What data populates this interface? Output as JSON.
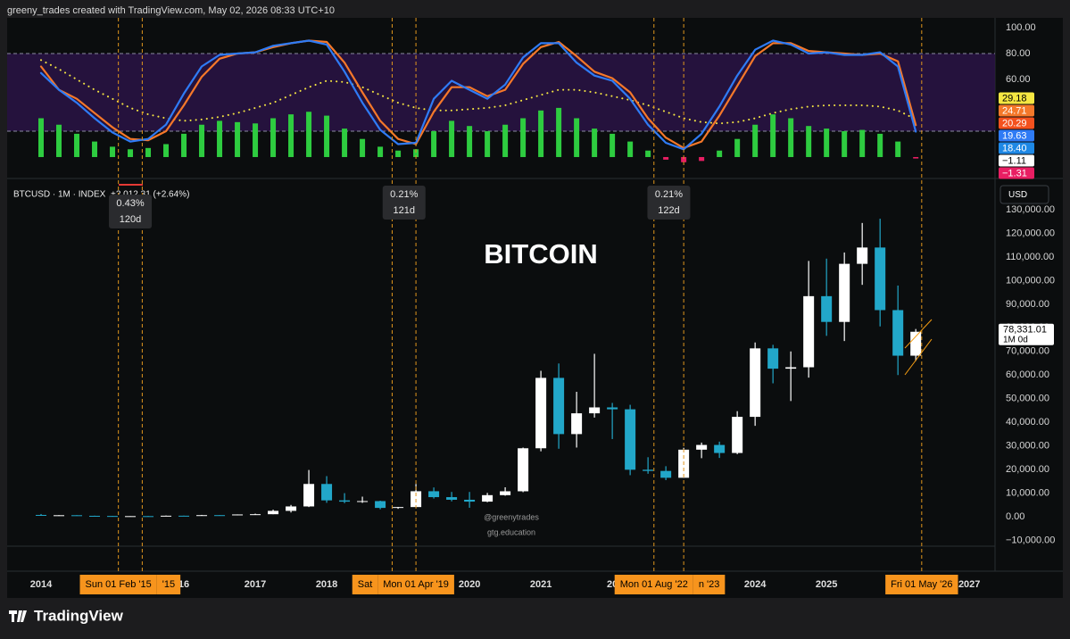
{
  "header": "greeny_trades created with TradingView.com, May 02, 2026 08:33 UTC+10",
  "brand": "TradingView",
  "chart_data": [
    {
      "type": "line",
      "xlim": [
        2013.525,
        2027.36
      ],
      "ylim": [
        -14.5,
        107.6
      ],
      "yticks": [
        {
          "value": 100,
          "label": "100.00"
        },
        {
          "value": 80,
          "label": "80.00"
        },
        {
          "value": 60,
          "label": "60.00"
        }
      ],
      "band": [
        20,
        80
      ],
      "grid": false,
      "x": [
        2014,
        2014.25,
        2014.5,
        2014.75,
        2015,
        2015.25,
        2015.5,
        2015.75,
        2016,
        2016.25,
        2016.5,
        2016.75,
        2017,
        2017.25,
        2017.5,
        2017.75,
        2018,
        2018.25,
        2018.5,
        2018.75,
        2019,
        2019.25,
        2019.5,
        2019.75,
        2020,
        2020.25,
        2020.5,
        2020.75,
        2021,
        2021.25,
        2021.5,
        2021.75,
        2022,
        2022.25,
        2022.5,
        2022.75,
        2023,
        2023.25,
        2023.5,
        2023.75,
        2024,
        2024.25,
        2024.5,
        2024.75,
        2025,
        2025.25,
        2025.5,
        2025.75,
        2026,
        2026.25
      ],
      "series": [
        {
          "type": "bar",
          "color": "#2ecc40",
          "negative_color": "#e91e63",
          "values": [
            30,
            25,
            18,
            12,
            8,
            6,
            7,
            10,
            18,
            25,
            28,
            27,
            26,
            30,
            33,
            35,
            32,
            22,
            14,
            8,
            5,
            6,
            20,
            28,
            24,
            20,
            25,
            30,
            36,
            38,
            30,
            22,
            18,
            12,
            5,
            -2,
            -4,
            -3,
            5,
            14,
            25,
            33,
            30,
            24,
            22,
            20,
            21,
            18,
            12,
            -1.11
          ]
        },
        {
          "type": "dotted",
          "color": "#f5e642",
          "values": [
            75,
            68,
            60,
            52,
            45,
            38,
            33,
            30,
            28,
            29,
            31,
            34,
            38,
            42,
            48,
            54,
            59,
            58,
            54,
            48,
            42,
            38,
            36,
            36,
            37,
            38,
            40,
            44,
            48,
            52,
            52,
            50,
            47,
            44,
            40,
            35,
            30,
            27,
            26,
            27,
            30,
            34,
            37,
            39,
            40,
            40,
            40,
            39,
            36,
            29.18
          ]
        },
        {
          "type": "line",
          "color": "#f5782a",
          "values": [
            70,
            52,
            45,
            34,
            23,
            14,
            13,
            20,
            40,
            62,
            76,
            80,
            81,
            85,
            88,
            90,
            89,
            73,
            50,
            28,
            14,
            10,
            35,
            54,
            54,
            47,
            52,
            72,
            85,
            89,
            78,
            66,
            61,
            50,
            30,
            15,
            7,
            12,
            32,
            55,
            78,
            88,
            88,
            82,
            81,
            80,
            79,
            80,
            74,
            24.71
          ]
        },
        {
          "type": "line",
          "color": "#2f7bf5",
          "values": [
            65,
            52,
            42,
            30,
            19,
            12,
            14,
            25,
            49,
            70,
            79,
            80,
            81,
            86,
            88,
            90,
            87,
            66,
            42,
            21,
            10,
            11,
            45,
            59,
            52,
            45,
            56,
            77,
            88,
            88,
            73,
            63,
            59,
            45,
            25,
            11,
            6,
            18,
            39,
            63,
            83,
            90,
            87,
            80,
            81,
            79,
            79,
            81,
            70,
            19.63
          ]
        }
      ],
      "last_labels": [
        {
          "value": 29.18,
          "label": "29.18",
          "color": "#f5e642"
        },
        {
          "value": 24.71,
          "label": "24.71",
          "color": "#f5782a"
        },
        {
          "value": 20.29,
          "label": "20.29",
          "color": "#f4511e"
        },
        {
          "value": 19.63,
          "label": "19.63",
          "color": "#2f7bf5"
        },
        {
          "value": 18.4,
          "label": "18.40",
          "color": "#1e88e5"
        },
        {
          "value": -1.11,
          "label": "−1.11",
          "color": "#ffffff"
        },
        {
          "value": -1.31,
          "label": "−1.31",
          "color": "#e91e63"
        }
      ]
    },
    {
      "type": "candlestick",
      "symbol": "BTCUSD · 1M · INDEX",
      "change": "+2,012.31 (+2.64%)",
      "watermark": "BITCOIN",
      "credit": "@greenytrades",
      "site": "gtg.education",
      "currency": "USD",
      "up_color": "#ffffff",
      "down_color": "#22a7c9",
      "xlim": [
        2013.525,
        2027.36
      ],
      "ylim": [
        -12470,
        142100
      ],
      "xticks": [
        2014,
        {
          "value": 2016,
          "label": "16"
        },
        2017,
        2018,
        2020,
        2021,
        {
          "value": 2022,
          "label": "20"
        },
        2024,
        2025,
        2027
      ],
      "yticks": [
        {
          "value": 130000,
          "label": "130,000.00"
        },
        {
          "value": 120000,
          "label": "120,000.00"
        },
        {
          "value": 110000,
          "label": "110,000.00"
        },
        {
          "value": 100000,
          "label": "100,000.00"
        },
        {
          "value": 90000,
          "label": "90,000.00"
        },
        {
          "value": 80000,
          "label": "80,000.00"
        },
        {
          "value": 70000,
          "label": "70,000.00"
        },
        {
          "value": 60000,
          "label": "60,000.00"
        },
        {
          "value": 50000,
          "label": "50,000.00"
        },
        {
          "value": 40000,
          "label": "40,000.00"
        },
        {
          "value": 30000,
          "label": "30,000.00"
        },
        {
          "value": 20000,
          "label": "20,000.00"
        },
        {
          "value": 10000,
          "label": "10,000.00"
        },
        {
          "value": 0,
          "label": "0.00"
        },
        {
          "value": -10000,
          "label": "−10,000.00"
        }
      ],
      "grid": false,
      "x": [
        2014,
        2014.25,
        2014.5,
        2014.75,
        2015,
        2015.25,
        2015.5,
        2015.75,
        2016,
        2016.25,
        2016.5,
        2016.75,
        2017,
        2017.25,
        2017.5,
        2017.75,
        2018,
        2018.25,
        2018.5,
        2018.75,
        2019,
        2019.25,
        2019.5,
        2019.75,
        2020,
        2020.25,
        2020.5,
        2020.75,
        2021,
        2021.25,
        2021.5,
        2021.75,
        2022,
        2022.25,
        2022.5,
        2022.75,
        2023,
        2023.25,
        2023.5,
        2023.75,
        2024,
        2024.25,
        2024.5,
        2024.75,
        2025,
        2025.25,
        2025.5,
        2025.75,
        2026,
        2026.25
      ],
      "open": [
        770,
        460,
        640,
        390,
        320,
        245,
        263,
        236,
        430,
        416,
        675,
        610,
        965,
        1070,
        2490,
        4360,
        13880,
        6930,
        6390,
        6625,
        3740,
        4100,
        10800,
        8300,
        7190,
        6400,
        9140,
        10780,
        29000,
        58800,
        35000,
        43800,
        46300,
        45500,
        19900,
        19400,
        16500,
        28400,
        30400,
        27000,
        42300,
        71300,
        62700,
        63300,
        93400,
        82500,
        107100,
        114000,
        87500,
        68200
      ],
      "high": [
        1160,
        680,
        660,
        460,
        320,
        265,
        320,
        500,
        465,
        780,
        680,
        980,
        1300,
        3000,
        5000,
        19800,
        17200,
        9990,
        8500,
        6800,
        4140,
        13900,
        12400,
        10500,
        10500,
        10100,
        12470,
        29300,
        61800,
        64900,
        52900,
        69000,
        48200,
        47400,
        25200,
        21400,
        29200,
        31400,
        31800,
        44700,
        73800,
        72800,
        70000,
        108300,
        109300,
        111900,
        124400,
        126200,
        97900,
        79500
      ],
      "low": [
        440,
        340,
        360,
        300,
        170,
        215,
        200,
        235,
        350,
        415,
        480,
        600,
        750,
        1060,
        1800,
        4100,
        5900,
        5750,
        5870,
        3150,
        3350,
        4080,
        7700,
        6500,
        3800,
        6150,
        8900,
        10400,
        27700,
        28800,
        29300,
        42000,
        32900,
        17600,
        18200,
        15500,
        16500,
        24800,
        24900,
        26500,
        38500,
        56500,
        49000,
        58900,
        76600,
        74400,
        98200,
        80600,
        60000,
        66000
      ],
      "close": [
        460,
        640,
        390,
        320,
        245,
        263,
        236,
        430,
        416,
        675,
        610,
        965,
        1070,
        2490,
        4360,
        13880,
        6930,
        6390,
        6625,
        3740,
        4100,
        10800,
        8300,
        7190,
        6400,
        9140,
        10780,
        29000,
        58800,
        35000,
        43800,
        46300,
        45500,
        19900,
        19400,
        16500,
        28400,
        30400,
        27000,
        42300,
        71300,
        62700,
        63300,
        93400,
        82500,
        107100,
        114000,
        87500,
        68200,
        78331.01
      ],
      "last_price": {
        "value": 78331.01,
        "label": "78,331.01",
        "countdown": "1M 0d"
      },
      "markers": [
        {
          "value": 2015.083,
          "label": "Sun 01 Feb '15"
        },
        {
          "value": 2015.417,
          "label": "'15"
        },
        {
          "value": 2018.917,
          "label": "Sat"
        },
        {
          "value": 2019.25,
          "label": "Mon 01 Apr '19"
        },
        {
          "value": 2022.583,
          "label": "Mon 01 Aug '22"
        },
        {
          "value": 2023.0,
          "label": "n '23"
        },
        {
          "value": 2026.333,
          "label": "Fri 01 May '26"
        }
      ],
      "measurements": [
        {
          "start": 2015.083,
          "end": 2015.417,
          "percent": "0.43%",
          "duration": "120d"
        },
        {
          "start": 2018.917,
          "end": 2019.25,
          "percent": "0.21%",
          "duration": "121d"
        },
        {
          "start": 2022.583,
          "end": 2023.0,
          "percent": "0.21%",
          "duration": "122d"
        }
      ]
    }
  ]
}
